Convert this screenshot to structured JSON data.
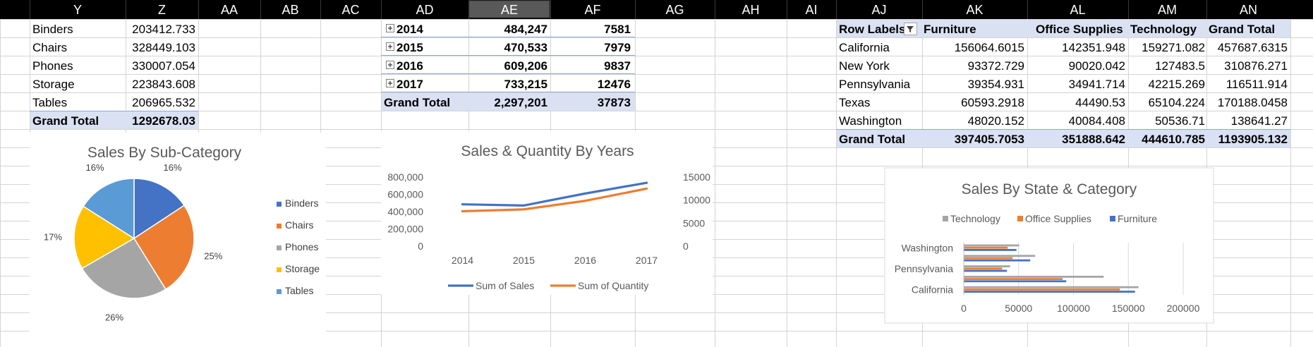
{
  "column_headers": [
    "Y",
    "Z",
    "AA",
    "AB",
    "AC",
    "AD",
    "AE",
    "AF",
    "AG",
    "AH",
    "AI",
    "AJ",
    "AK",
    "AL",
    "AM",
    "AN"
  ],
  "selected_column": "AE",
  "pivot_subcategory": {
    "rows": [
      {
        "label": "Binders",
        "value": "203412.733"
      },
      {
        "label": "Chairs",
        "value": "328449.103"
      },
      {
        "label": "Phones",
        "value": "330007.054"
      },
      {
        "label": "Storage",
        "value": "223843.608"
      },
      {
        "label": "Tables",
        "value": "206965.532"
      }
    ],
    "total_label": "Grand Total",
    "total_value": "1292678.03"
  },
  "pivot_years": {
    "expand_icon": "plus-box-icon",
    "rows": [
      {
        "year": "2014",
        "sales": "484,247",
        "qty": "7581"
      },
      {
        "year": "2015",
        "sales": "470,533",
        "qty": "7979"
      },
      {
        "year": "2016",
        "sales": "609,206",
        "qty": "9837"
      },
      {
        "year": "2017",
        "sales": "733,215",
        "qty": "12476"
      }
    ],
    "total_label": "Grand Total",
    "total_sales": "2,297,201",
    "total_qty": "37873"
  },
  "pivot_state": {
    "headers": [
      "Row Labels",
      "Furniture",
      "Office Supplies",
      "Technology",
      "Grand Total"
    ],
    "filter_icon": "filter-dropdown-icon",
    "rows": [
      {
        "state": "California",
        "furniture": "156064.6015",
        "office": "142351.948",
        "tech": "159271.082",
        "total": "457687.6315"
      },
      {
        "state": "New York",
        "furniture": "93372.729",
        "office": "90020.042",
        "tech": "127483.5",
        "total": "310876.271"
      },
      {
        "state": "Pennsylvania",
        "furniture": "39354.931",
        "office": "34941.714",
        "tech": "42215.269",
        "total": "116511.914"
      },
      {
        "state": "Texas",
        "furniture": "60593.2918",
        "office": "44490.53",
        "tech": "65104.224",
        "total": "170188.0458"
      },
      {
        "state": "Washington",
        "furniture": "48020.152",
        "office": "40084.408",
        "tech": "50536.71",
        "total": "138641.27"
      }
    ],
    "total_label": "Grand Total",
    "total_furniture": "397405.7053",
    "total_office": "351888.642",
    "total_tech": "444610.785",
    "total_total": "1193905.132"
  },
  "colors": {
    "header_bg": "#000000",
    "header_text": "#ffffff",
    "selected_header_bg": "#595959",
    "pivot_fill": "#d9e1f2",
    "gridline": "#d4d4d4",
    "blue": "#4472c4",
    "orange": "#ed7d31",
    "gray": "#a5a5a5",
    "yellow": "#ffc000",
    "light_blue": "#5b9bd5"
  },
  "chart_data": [
    {
      "type": "pie",
      "title": "Sales By Sub-Category",
      "categories": [
        "Binders",
        "Chairs",
        "Phones",
        "Storage",
        "Tables"
      ],
      "values": [
        203412.733,
        328449.103,
        330007.054,
        223843.608,
        206965.532
      ],
      "data_labels": [
        "16%",
        "25%",
        "26%",
        "17%",
        "16%"
      ],
      "colors": [
        "#4472c4",
        "#ed7d31",
        "#a5a5a5",
        "#ffc000",
        "#5b9bd5"
      ],
      "legend": "right"
    },
    {
      "type": "line",
      "title": "Sales & Quantity By Years",
      "categories": [
        "2014",
        "2015",
        "2016",
        "2017"
      ],
      "series": [
        {
          "name": "Sum of Sales",
          "values": [
            484247,
            470533,
            609206,
            733215
          ],
          "axis": "left",
          "color": "#4472c4"
        },
        {
          "name": "Sum of Quantity",
          "values": [
            7581,
            7979,
            9837,
            12476
          ],
          "axis": "right",
          "color": "#ed7d31"
        }
      ],
      "ylim": [
        0,
        800000
      ],
      "yticks": [
        "0",
        "200,000",
        "400,000",
        "600,000",
        "800,000"
      ],
      "y2lim": [
        0,
        15000
      ],
      "y2ticks": [
        "0",
        "5000",
        "10000",
        "15000"
      ],
      "grid": false,
      "legend": "bottom"
    },
    {
      "type": "bar",
      "orientation": "horizontal",
      "title": "Sales By State & Category",
      "categories": [
        "California",
        "New York",
        "Pennsylvania",
        "Texas",
        "Washington"
      ],
      "visible_category_labels": [
        "California",
        "Pennsylvania",
        "Washington"
      ],
      "series": [
        {
          "name": "Furniture",
          "values": [
            156064.6015,
            93372.729,
            39354.931,
            60593.2918,
            48020.152
          ],
          "color": "#4472c4"
        },
        {
          "name": "Office Supplies",
          "values": [
            142351.948,
            90020.042,
            34941.714,
            44490.53,
            40084.408
          ],
          "color": "#ed7d31"
        },
        {
          "name": "Technology",
          "values": [
            159271.082,
            127483.5,
            42215.269,
            65104.224,
            50536.71
          ],
          "color": "#a5a5a5"
        }
      ],
      "legend_order": [
        "Technology",
        "Office Supplies",
        "Furniture"
      ],
      "xlim": [
        0,
        200000
      ],
      "xticks": [
        "0",
        "50000",
        "100000",
        "150000",
        "200000"
      ],
      "grid": true,
      "legend": "top"
    }
  ]
}
